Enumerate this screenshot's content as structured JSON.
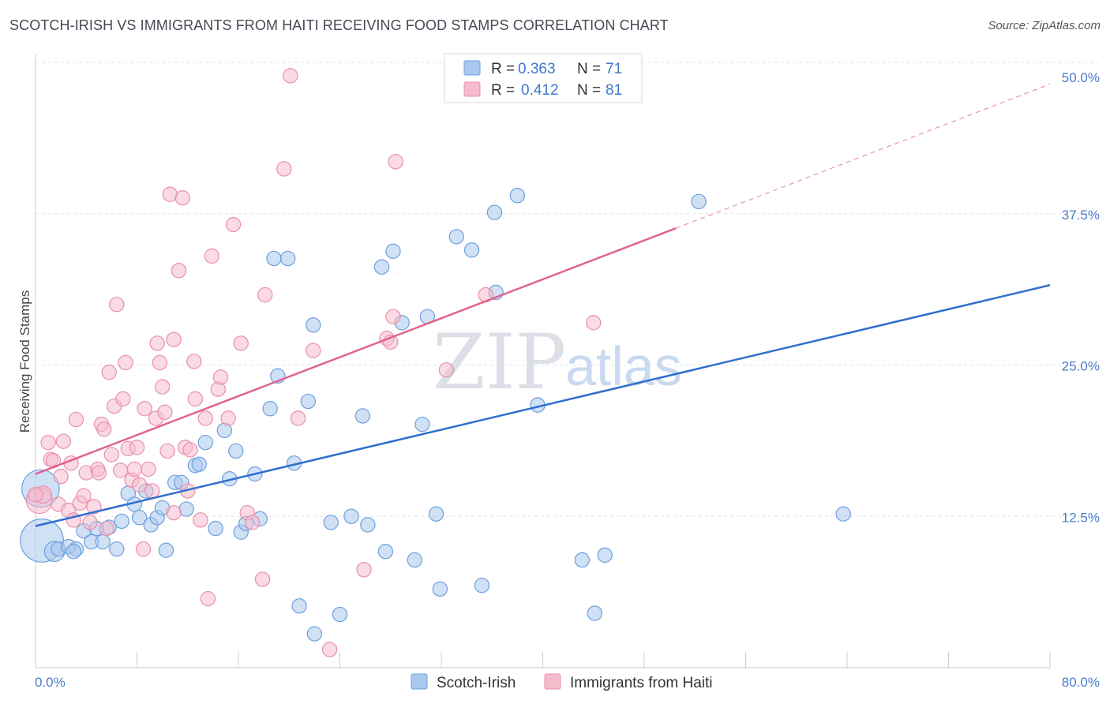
{
  "header": {
    "title": "SCOTCH-IRISH VS IMMIGRANTS FROM HAITI RECEIVING FOOD STAMPS CORRELATION CHART",
    "source": "Source: ZipAtlas.com"
  },
  "watermark": {
    "zip": "ZIP",
    "atlas": "atlas"
  },
  "colors": {
    "blue_fill": "#a9c8ef",
    "blue_stroke": "#6d9fdc",
    "blue_line": "#2f6fce",
    "pink_fill": "#f6bccd",
    "pink_stroke": "#e890aa",
    "pink_line": "#e0628d",
    "grid": "#dfe3ea",
    "tick_text": "#4a7cc9"
  },
  "legend": {
    "rows": [
      {
        "r_label": "R =",
        "r_value": "0.363",
        "n_label": "N =",
        "n_value": "71"
      },
      {
        "r_label": "R =",
        "r_value": "0.412",
        "n_label": "N =",
        "n_value": "81"
      }
    ]
  },
  "bottom_legend": [
    {
      "label": "Scotch-Irish"
    },
    {
      "label": "Immigrants from Haiti"
    }
  ],
  "chart_data": {
    "type": "scatter",
    "title": "SCOTCH-IRISH VS IMMIGRANTS FROM HAITI RECEIVING FOOD STAMPS CORRELATION CHART",
    "xlabel": "",
    "ylabel": "Receiving Food Stamps",
    "xlim": [
      0,
      80
    ],
    "ylim": [
      0,
      50
    ],
    "x_tick_labels": [
      "0.0%",
      "80.0%"
    ],
    "y_ticks": [
      12.5,
      25.0,
      37.5,
      50.0
    ],
    "y_tick_labels": [
      "12.5%",
      "25.0%",
      "37.5%",
      "50.0%"
    ],
    "grid": true,
    "legend_position": "top-center",
    "series": [
      {
        "name": "Scotch-Irish",
        "r": 0.363,
        "n": 71,
        "trend": {
          "x": [
            0,
            80
          ],
          "y": [
            11.7,
            31.6
          ]
        },
        "points": [
          [
            0.4,
            14.8,
            26
          ],
          [
            0.5,
            10.5,
            30
          ],
          [
            1.5,
            9.6,
            14
          ],
          [
            1.8,
            9.8,
            10
          ],
          [
            2.6,
            10.0,
            10
          ],
          [
            3.2,
            9.8,
            10
          ],
          [
            3.8,
            11.3,
            10
          ],
          [
            4.4,
            10.4,
            10
          ],
          [
            4.8,
            11.5,
            10
          ],
          [
            5.3,
            10.4,
            10
          ],
          [
            5.8,
            11.6,
            10
          ],
          [
            6.4,
            9.8,
            10
          ],
          [
            6.8,
            12.1,
            10
          ],
          [
            7.3,
            14.4,
            10
          ],
          [
            7.8,
            13.5,
            10
          ],
          [
            8.2,
            12.4,
            10
          ],
          [
            8.7,
            14.6,
            10
          ],
          [
            9.1,
            11.8,
            10
          ],
          [
            9.6,
            12.4,
            10
          ],
          [
            10.0,
            13.2,
            10
          ],
          [
            10.3,
            9.7,
            10
          ],
          [
            11.0,
            15.3,
            10
          ],
          [
            11.5,
            15.3,
            10
          ],
          [
            11.9,
            13.1,
            10
          ],
          [
            12.6,
            16.7,
            10
          ],
          [
            12.9,
            16.8,
            10
          ],
          [
            13.4,
            18.6,
            10
          ],
          [
            14.2,
            11.5,
            10
          ],
          [
            14.9,
            19.6,
            10
          ],
          [
            15.3,
            15.6,
            10
          ],
          [
            15.8,
            17.9,
            10
          ],
          [
            16.2,
            11.2,
            10
          ],
          [
            16.6,
            11.9,
            10
          ],
          [
            17.3,
            16.0,
            10
          ],
          [
            17.7,
            12.3,
            10
          ],
          [
            18.5,
            21.4,
            10
          ],
          [
            18.8,
            33.8,
            10
          ],
          [
            19.1,
            24.1,
            10
          ],
          [
            19.9,
            33.8,
            10
          ],
          [
            20.4,
            16.9,
            10
          ],
          [
            20.8,
            5.1,
            10
          ],
          [
            21.5,
            22.0,
            10
          ],
          [
            21.9,
            28.3,
            10
          ],
          [
            22.0,
            2.8,
            10
          ],
          [
            23.3,
            12.0,
            10
          ],
          [
            24.0,
            4.4,
            10
          ],
          [
            24.9,
            12.5,
            10
          ],
          [
            25.8,
            20.8,
            10
          ],
          [
            26.2,
            11.8,
            10
          ],
          [
            27.3,
            33.1,
            10
          ],
          [
            27.6,
            9.6,
            10
          ],
          [
            28.2,
            34.4,
            10
          ],
          [
            28.9,
            28.5,
            10
          ],
          [
            29.9,
            8.9,
            10
          ],
          [
            30.5,
            20.1,
            10
          ],
          [
            30.9,
            29.0,
            10
          ],
          [
            31.6,
            12.7,
            10
          ],
          [
            31.9,
            6.5,
            10
          ],
          [
            33.2,
            35.6,
            10
          ],
          [
            34.4,
            34.5,
            10
          ],
          [
            35.2,
            6.8,
            10
          ],
          [
            36.2,
            37.6,
            10
          ],
          [
            36.3,
            31.0,
            10
          ],
          [
            38.0,
            39.0,
            10
          ],
          [
            39.6,
            21.7,
            10
          ],
          [
            43.1,
            8.9,
            10
          ],
          [
            44.1,
            4.5,
            10
          ],
          [
            44.9,
            9.3,
            10
          ],
          [
            52.3,
            38.5,
            10
          ],
          [
            63.7,
            12.7,
            10
          ],
          [
            3.0,
            9.6,
            10
          ]
        ]
      },
      {
        "name": "Immigrants from Haiti",
        "r": 0.412,
        "n": 81,
        "trend": {
          "x": [
            0,
            50.5
          ],
          "y": [
            16.0,
            36.3
          ],
          "dashed_to": [
            80,
            48.2
          ]
        },
        "points": [
          [
            0.3,
            13.8,
            18
          ],
          [
            0.6,
            14.3,
            12
          ],
          [
            1.0,
            18.6,
            10
          ],
          [
            1.2,
            17.2,
            10
          ],
          [
            1.4,
            17.1,
            10
          ],
          [
            1.8,
            13.5,
            10
          ],
          [
            2.0,
            15.8,
            10
          ],
          [
            2.2,
            18.7,
            10
          ],
          [
            2.6,
            13.0,
            10
          ],
          [
            2.8,
            16.9,
            10
          ],
          [
            3.0,
            12.2,
            10
          ],
          [
            3.2,
            20.5,
            10
          ],
          [
            3.5,
            13.6,
            10
          ],
          [
            3.8,
            14.2,
            10
          ],
          [
            4.0,
            16.1,
            10
          ],
          [
            4.3,
            12.0,
            10
          ],
          [
            4.6,
            13.3,
            10
          ],
          [
            4.9,
            16.4,
            10
          ],
          [
            5.0,
            16.1,
            10
          ],
          [
            5.2,
            20.1,
            10
          ],
          [
            5.4,
            19.7,
            10
          ],
          [
            5.6,
            11.5,
            10
          ],
          [
            5.8,
            24.4,
            10
          ],
          [
            6.0,
            17.6,
            10
          ],
          [
            6.2,
            21.6,
            10
          ],
          [
            6.4,
            30.0,
            10
          ],
          [
            6.7,
            16.3,
            10
          ],
          [
            6.9,
            22.2,
            10
          ],
          [
            7.1,
            25.2,
            10
          ],
          [
            7.3,
            18.1,
            10
          ],
          [
            7.6,
            15.5,
            10
          ],
          [
            7.8,
            16.4,
            10
          ],
          [
            8.0,
            18.2,
            10
          ],
          [
            8.2,
            15.1,
            10
          ],
          [
            8.5,
            9.8,
            10
          ],
          [
            8.6,
            21.4,
            10
          ],
          [
            8.9,
            16.4,
            10
          ],
          [
            9.2,
            14.6,
            10
          ],
          [
            9.5,
            20.6,
            10
          ],
          [
            9.6,
            26.8,
            10
          ],
          [
            9.8,
            25.2,
            10
          ],
          [
            10.0,
            23.2,
            10
          ],
          [
            10.2,
            21.1,
            10
          ],
          [
            10.4,
            17.9,
            10
          ],
          [
            10.6,
            39.1,
            10
          ],
          [
            10.9,
            12.8,
            10
          ],
          [
            10.9,
            27.1,
            10
          ],
          [
            11.3,
            32.8,
            10
          ],
          [
            11.6,
            38.8,
            10
          ],
          [
            11.8,
            18.2,
            10
          ],
          [
            12.0,
            14.6,
            10
          ],
          [
            12.2,
            18.0,
            10
          ],
          [
            12.5,
            25.3,
            10
          ],
          [
            12.6,
            22.2,
            10
          ],
          [
            13.0,
            12.2,
            10
          ],
          [
            13.4,
            20.6,
            10
          ],
          [
            13.6,
            5.7,
            10
          ],
          [
            13.9,
            34.0,
            10
          ],
          [
            14.4,
            23.0,
            10
          ],
          [
            14.6,
            24.0,
            10
          ],
          [
            15.2,
            20.6,
            10
          ],
          [
            15.6,
            36.6,
            10
          ],
          [
            16.2,
            26.8,
            10
          ],
          [
            16.7,
            12.8,
            10
          ],
          [
            17.1,
            12.0,
            10
          ],
          [
            17.9,
            7.3,
            10
          ],
          [
            18.1,
            30.8,
            10
          ],
          [
            19.6,
            41.2,
            10
          ],
          [
            20.1,
            48.9,
            10
          ],
          [
            20.7,
            20.6,
            10
          ],
          [
            21.9,
            26.2,
            10
          ],
          [
            23.2,
            1.5,
            10
          ],
          [
            25.9,
            8.1,
            10
          ],
          [
            27.7,
            27.2,
            10
          ],
          [
            28.0,
            26.9,
            10
          ],
          [
            28.2,
            29.0,
            10
          ],
          [
            28.4,
            41.8,
            10
          ],
          [
            32.4,
            24.6,
            10
          ],
          [
            35.5,
            30.8,
            10
          ],
          [
            44.0,
            28.5,
            10
          ],
          [
            0.0,
            14.3,
            10
          ]
        ]
      }
    ]
  }
}
